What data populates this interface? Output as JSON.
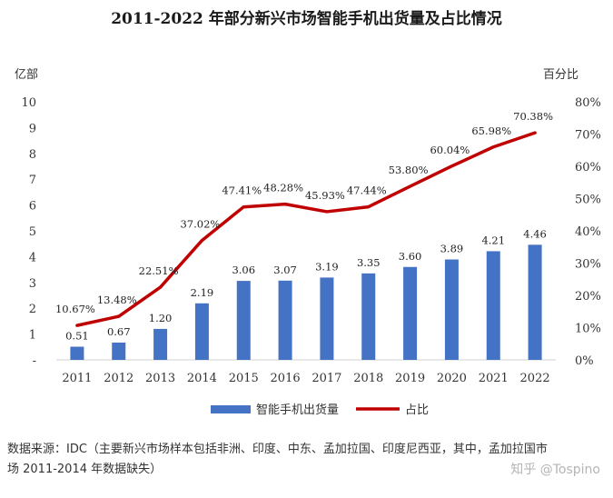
{
  "title": "2011-2022 年部分新兴市场智能手机出货量及占比情况",
  "left_unit": "亿部",
  "right_unit": "百分比",
  "source_text": "数据来源：IDC（主要新兴市场样本包括非洲、印度、中东、孟加拉国、印度尼西亚，其中，孟加拉国市场 2011-2014 年数据缺失）",
  "watermark": "知乎 @Tospino",
  "chart_data": {
    "type": "bar",
    "title": "2011-2022 年部分新兴市场智能手机出货量及占比情况",
    "categories": [
      "2011",
      "2012",
      "2013",
      "2014",
      "2015",
      "2016",
      "2017",
      "2018",
      "2019",
      "2020",
      "2021",
      "2022"
    ],
    "series": [
      {
        "name": "智能手机出货量",
        "type": "bar",
        "axis": "left",
        "values": [
          0.51,
          0.67,
          1.2,
          2.19,
          3.06,
          3.07,
          3.19,
          3.35,
          3.6,
          3.89,
          4.21,
          4.46
        ],
        "labels": [
          "0.51",
          "0.67",
          "1.20",
          "2.19",
          "3.06",
          "3.07",
          "3.19",
          "3.35",
          "3.60",
          "3.89",
          "4.21",
          "4.46"
        ],
        "color": "#4472c4"
      },
      {
        "name": "占比",
        "type": "line",
        "axis": "right",
        "values": [
          10.67,
          13.48,
          22.51,
          37.02,
          47.41,
          48.28,
          45.93,
          47.44,
          53.8,
          60.04,
          65.98,
          70.38
        ],
        "labels": [
          "10.67%",
          "13.48%",
          "22.51%",
          "37.02%",
          "47.41%",
          "48.28%",
          "45.93%",
          "47.44%",
          "53.80%",
          "60.04%",
          "65.98%",
          "70.38%"
        ],
        "color": "#c00000"
      }
    ],
    "left_axis": {
      "label": "亿部",
      "ylim": [
        0,
        10
      ],
      "ticks": [
        "-",
        "1",
        "2",
        "3",
        "4",
        "5",
        "6",
        "7",
        "8",
        "9",
        "10"
      ]
    },
    "right_axis": {
      "label": "百分比",
      "ylim": [
        0,
        80
      ],
      "ticks": [
        "0%",
        "10%",
        "20%",
        "30%",
        "40%",
        "50%",
        "60%",
        "70%",
        "80%"
      ]
    },
    "grid": false,
    "legend": "bottom"
  }
}
